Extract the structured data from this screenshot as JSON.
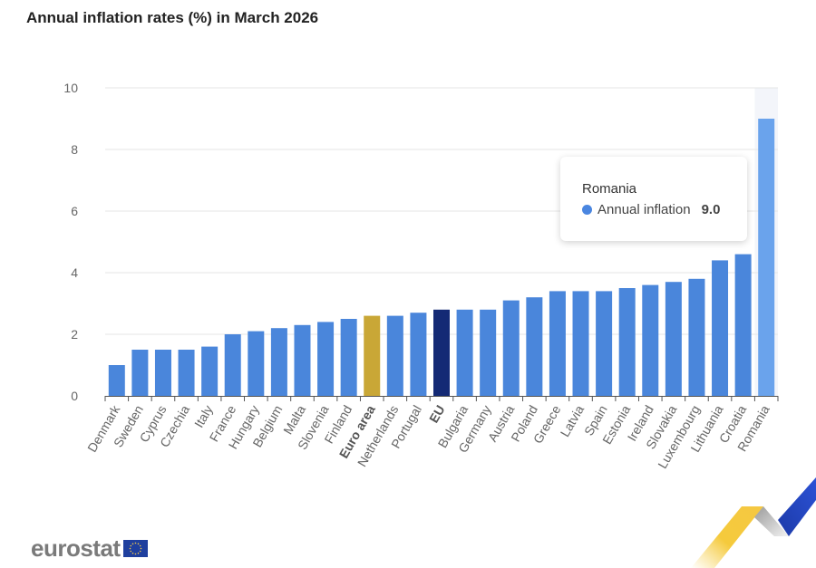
{
  "header": {
    "title": "Annual inflation rates (%) in March 2026"
  },
  "tooltip": {
    "country": "Romania",
    "series_name": "Annual inflation",
    "value": "9.0"
  },
  "logo": {
    "text": "eurostat"
  },
  "colors": {
    "bar": "#4a86db",
    "euro_area": "#c9a736",
    "eu": "#142a75",
    "highlight": "#6aa3ec",
    "hover_band": "#f3f5fa"
  },
  "chart_data": {
    "type": "bar",
    "title": "Annual inflation rates (%) in March 2026",
    "xlabel": "",
    "ylabel": "",
    "ylim": [
      0,
      10
    ],
    "yticks": [
      "0",
      "2",
      "4",
      "6",
      "8",
      "10"
    ],
    "grid": true,
    "legend": "none",
    "categories": [
      "Denmark",
      "Sweden",
      "Cyprus",
      "Czechia",
      "Italy",
      "France",
      "Hungary",
      "Belgium",
      "Malta",
      "Slovenia",
      "Finland",
      "Euro area",
      "Netherlands",
      "Portugal",
      "EU",
      "Bulgaria",
      "Germany",
      "Austria",
      "Poland",
      "Greece",
      "Latvia",
      "Spain",
      "Estonia",
      "Ireland",
      "Slovakia",
      "Luxembourg",
      "Lithuania",
      "Croatia",
      "Romania"
    ],
    "bold_categories": [
      "Euro area",
      "EU"
    ],
    "highlighted_category": "Romania",
    "series": [
      {
        "name": "Annual inflation",
        "values": [
          1.0,
          1.5,
          1.5,
          1.5,
          1.6,
          2.0,
          2.1,
          2.2,
          2.3,
          2.4,
          2.5,
          2.6,
          2.6,
          2.7,
          2.8,
          2.8,
          2.8,
          3.1,
          3.2,
          3.4,
          3.4,
          3.4,
          3.5,
          3.6,
          3.7,
          3.8,
          4.4,
          4.6,
          9.0
        ]
      }
    ]
  }
}
